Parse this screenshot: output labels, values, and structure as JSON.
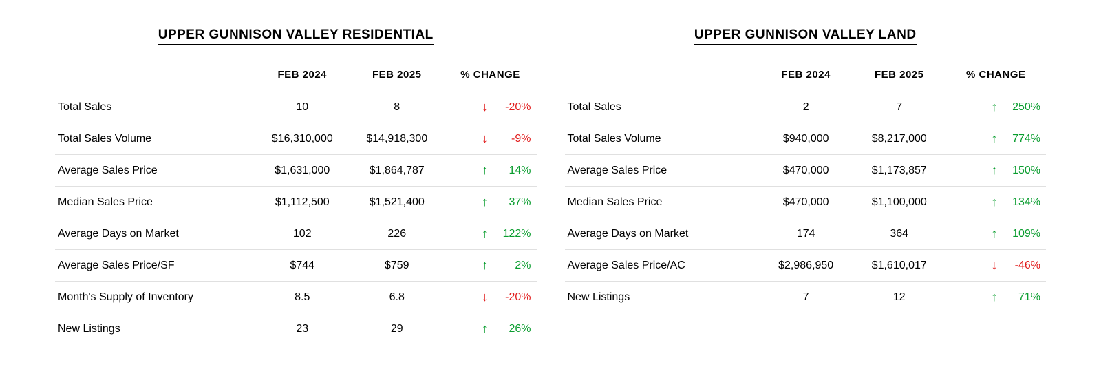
{
  "colors": {
    "up": "#0a9d2f",
    "down": "#e11b1b",
    "row_border": "#e0e0e0",
    "text": "#000000",
    "background": "#ffffff"
  },
  "column_headers": {
    "metric": "",
    "col1": "FEB 2024",
    "col2": "FEB 2025",
    "change": "% CHANGE"
  },
  "left": {
    "title": "UPPER GUNNISON VALLEY RESIDENTIAL",
    "rows": [
      {
        "metric": "Total Sales",
        "v1": "10",
        "v2": "8",
        "dir": "down",
        "pct": "-20%"
      },
      {
        "metric": "Total Sales Volume",
        "v1": "$16,310,000",
        "v2": "$14,918,300",
        "dir": "down",
        "pct": "-9%"
      },
      {
        "metric": "Average Sales Price",
        "v1": "$1,631,000",
        "v2": "$1,864,787",
        "dir": "up",
        "pct": "14%"
      },
      {
        "metric": "Median Sales Price",
        "v1": "$1,112,500",
        "v2": "$1,521,400",
        "dir": "up",
        "pct": "37%"
      },
      {
        "metric": "Average Days on Market",
        "v1": "102",
        "v2": "226",
        "dir": "up",
        "pct": "122%"
      },
      {
        "metric": "Average Sales Price/SF",
        "v1": "$744",
        "v2": "$759",
        "dir": "up",
        "pct": "2%"
      },
      {
        "metric": "Month's Supply of Inventory",
        "v1": "8.5",
        "v2": "6.8",
        "dir": "down",
        "pct": "-20%"
      },
      {
        "metric": "New Listings",
        "v1": "23",
        "v2": "29",
        "dir": "up",
        "pct": "26%"
      }
    ]
  },
  "right": {
    "title": "UPPER GUNNISON VALLEY LAND",
    "rows": [
      {
        "metric": "Total Sales",
        "v1": "2",
        "v2": "7",
        "dir": "up",
        "pct": "250%"
      },
      {
        "metric": "Total Sales Volume",
        "v1": "$940,000",
        "v2": "$8,217,000",
        "dir": "up",
        "pct": "774%"
      },
      {
        "metric": "Average Sales Price",
        "v1": "$470,000",
        "v2": "$1,173,857",
        "dir": "up",
        "pct": "150%"
      },
      {
        "metric": "Median Sales Price",
        "v1": "$470,000",
        "v2": "$1,100,000",
        "dir": "up",
        "pct": "134%"
      },
      {
        "metric": "Average Days on Market",
        "v1": "174",
        "v2": "364",
        "dir": "up",
        "pct": "109%"
      },
      {
        "metric": "Average Sales Price/AC",
        "v1": "$2,986,950",
        "v2": "$1,610,017",
        "dir": "down",
        "pct": "-46%"
      },
      {
        "metric": "New Listings",
        "v1": "7",
        "v2": "12",
        "dir": "up",
        "pct": "71%"
      }
    ]
  }
}
